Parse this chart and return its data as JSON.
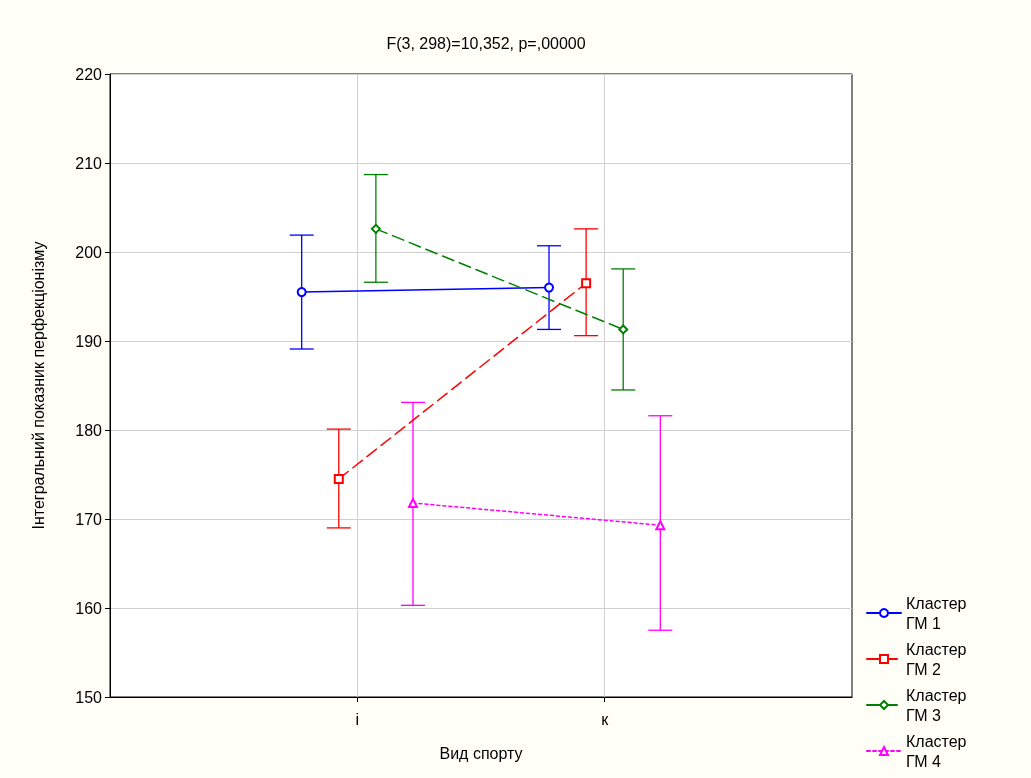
{
  "chart_data": {
    "type": "line",
    "title": "F(3, 298)=10,352, p=,00000",
    "xlabel": "Вид спорту",
    "ylabel": "Інтегральний показник перфекціонізму",
    "categories": [
      "і",
      "к"
    ],
    "series": [
      {
        "name": "Кластер ГМ 1",
        "color": "#0000ff",
        "values": [
          195.5,
          196.0
        ],
        "errors": [
          [
            189.1,
            201.9
          ],
          [
            191.3,
            200.7
          ]
        ],
        "marker": "circle",
        "line_style": "solid"
      },
      {
        "name": "Кластер ГМ 2",
        "color": "#ff0000",
        "values": [
          174.5,
          196.5
        ],
        "errors": [
          [
            169.0,
            180.1
          ],
          [
            190.6,
            202.6
          ]
        ],
        "marker": "square",
        "line_style": "dashed"
      },
      {
        "name": "Кластер ГМ 3",
        "color": "#008000",
        "values": [
          202.6,
          191.3
        ],
        "errors": [
          [
            196.6,
            208.7
          ],
          [
            184.5,
            198.1
          ]
        ],
        "marker": "diamond",
        "line_style": "dashed"
      },
      {
        "name": "Кластер ГМ 4",
        "color": "#ff00ff",
        "values": [
          171.8,
          169.3
        ],
        "errors": [
          [
            160.3,
            183.1
          ],
          [
            157.5,
            181.6
          ]
        ],
        "marker": "triangle",
        "line_style": "dotted"
      }
    ],
    "ylim": [
      150,
      220
    ],
    "yticks": [
      150,
      160,
      170,
      180,
      190,
      200,
      210,
      220
    ],
    "grid": true,
    "legend": "bottom right"
  }
}
